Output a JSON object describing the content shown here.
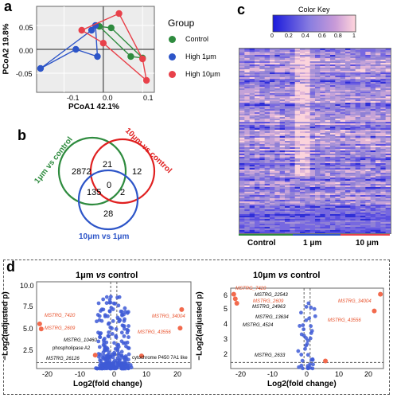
{
  "panel_labels": {
    "a": "a",
    "b": "b",
    "c": "c",
    "d": "d"
  },
  "pcoa": {
    "xlabel": "PCoA1 42.1%",
    "ylabel": "PCoA2 19.8%",
    "legend_title": "Group",
    "legend": [
      "Control",
      "High 1μm",
      "High 10μm"
    ],
    "xticks": [
      "-0.1",
      "0.0",
      "0.1"
    ],
    "yticks": [
      "0.05",
      "0.00",
      "-0.05"
    ]
  },
  "venn": {
    "labels": {
      "left": "1μm vs control",
      "right": "10μm vs control",
      "bottom": "10μm vs 1μm"
    },
    "counts": {
      "left_only": "2872",
      "left_right": "21",
      "right_only": "12",
      "left_bottom": "135",
      "center": "0",
      "right_bottom": "2",
      "bottom_only": "28"
    }
  },
  "heatmap": {
    "color_key_title": "Color Key",
    "key_ticks": [
      "0",
      "0.2",
      "0.4",
      "0.6",
      "0.8",
      "1"
    ],
    "groups": [
      "Control",
      "1 μm",
      "10 μm"
    ],
    "group_colors": [
      "#2e8b3e",
      "#2d55c8",
      "#e8414a"
    ]
  },
  "volcano_left": {
    "title_pre": "1μm ",
    "title_vs": "vs",
    "title_post": " control",
    "xlabel": "Log2(fold change)",
    "ylabel": "−Log2(adjusted p)",
    "xticks": [
      "-20",
      "-10",
      "0",
      "10",
      "20"
    ],
    "yticks": [
      "10.0",
      "7.5",
      "5.0",
      "2.5"
    ],
    "genes_orange": [
      "MSTRG_7420",
      "MSTRG_2609",
      "MSTRG_34004",
      "MSTRG_43556"
    ],
    "genes_black": [
      "MSTRG_10460",
      "phospholipase A2",
      "MSTRG_26126",
      "cytochrome P450 7A1 like"
    ]
  },
  "volcano_right": {
    "title_pre": "10μm ",
    "title_vs": "vs",
    "title_post": " control",
    "xlabel": "Log2(fold change)",
    "ylabel": "−Log2(adjusted p)",
    "xticks": [
      "-20",
      "-10",
      "0",
      "10",
      "20"
    ],
    "yticks": [
      "6",
      "5",
      "4",
      "3",
      "2"
    ],
    "genes_orange": [
      "MSTRG_7420",
      "MSTRG_2609",
      "MSTRG_34004",
      "MSTRG_43556"
    ],
    "genes_black": [
      "MSTRG_22543",
      "MSTRG_24963",
      "MSTRG_13634",
      "MSTRG_4524",
      "MSTRG_2633"
    ]
  },
  "chart_data": [
    {
      "type": "scatter",
      "xlabel": "PCoA1 42.1%",
      "ylabel": "PCoA2 19.8%",
      "xlim": [
        -0.17,
        0.13
      ],
      "ylim": [
        -0.09,
        0.09
      ],
      "legend_position": "right",
      "series": [
        {
          "name": "Control",
          "color": "#2e8b3e",
          "x": [
            -0.01,
            0.02,
            0.07,
            0.1
          ],
          "y": [
            0.048,
            0.045,
            -0.015,
            -0.018
          ]
        },
        {
          "name": "High 1μm",
          "color": "#2d55c8",
          "x": [
            -0.16,
            -0.07,
            -0.03,
            -0.02,
            -0.015
          ],
          "y": [
            -0.04,
            0.0,
            0.04,
            0.05,
            -0.015
          ]
        },
        {
          "name": "High 10μm",
          "color": "#e8414a",
          "x": [
            -0.055,
            0.0,
            0.04,
            0.1,
            0.11
          ],
          "y": [
            0.04,
            0.013,
            0.075,
            -0.02,
            -0.065
          ]
        }
      ]
    },
    {
      "type": "scatter",
      "title": "1μm vs control",
      "xlabel": "Log2(fold change)",
      "ylabel": "−Log2(adjusted p)",
      "xlim": [
        -25,
        25
      ],
      "ylim": [
        0.5,
        10.8
      ],
      "highlighted": {
        "x": [
          -24,
          -23.5,
          -6,
          9,
          21.5,
          22
        ],
        "y": [
          5.8,
          5.2,
          2.1,
          2.0,
          5.3,
          7.5
        ]
      }
    },
    {
      "type": "scatter",
      "title": "10μm vs control",
      "xlabel": "Log2(fold change)",
      "ylabel": "−Log2(adjusted p)",
      "xlim": [
        -25,
        25
      ],
      "ylim": [
        1.0,
        6.3
      ],
      "highlighted": {
        "x": [
          -24,
          -23.5,
          -23,
          6,
          24,
          22
        ],
        "y": [
          5.9,
          5.6,
          5.3,
          1.5,
          5.9,
          4.8
        ]
      }
    }
  ]
}
